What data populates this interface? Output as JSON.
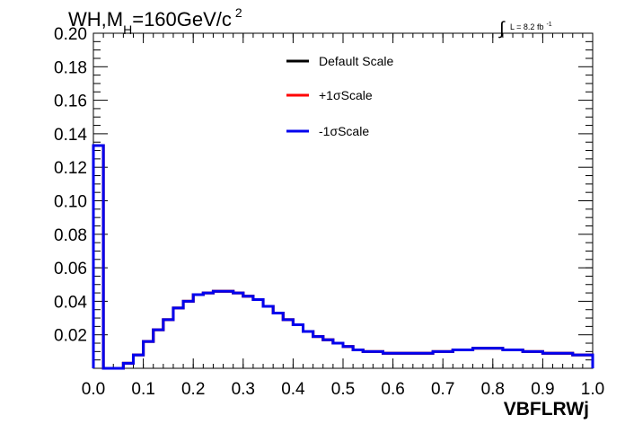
{
  "header": {
    "title_main": "WH,M",
    "title_sub": "H",
    "title_rest": "=160GeV/c",
    "title_sup": "2",
    "lumi_integral": "∫",
    "lumi_text": "L = 8.2 fb",
    "lumi_sup": "-1"
  },
  "chart_data": {
    "type": "line",
    "style": "step histogram",
    "xlabel": "VBFLRWj",
    "ylabel": "",
    "xlim": [
      0.0,
      1.0
    ],
    "ylim": [
      0.0,
      0.2
    ],
    "xticks": [
      "0.0",
      "0.1",
      "0.2",
      "0.3",
      "0.4",
      "0.5",
      "0.6",
      "0.7",
      "0.8",
      "0.9",
      "1.0"
    ],
    "yticks": [
      "0.02",
      "0.04",
      "0.06",
      "0.08",
      "0.10",
      "0.12",
      "0.14",
      "0.16",
      "0.18",
      "0.20"
    ],
    "legend_position": "top-right",
    "bin_edges": [
      0.0,
      0.02,
      0.04,
      0.06,
      0.08,
      0.1,
      0.12,
      0.14,
      0.16,
      0.18,
      0.2,
      0.22,
      0.24,
      0.26,
      0.28,
      0.3,
      0.32,
      0.34,
      0.36,
      0.38,
      0.4,
      0.42,
      0.44,
      0.46,
      0.48,
      0.5,
      0.52,
      0.54,
      0.56,
      0.58,
      0.6,
      0.62,
      0.64,
      0.66,
      0.68,
      0.7,
      0.72,
      0.74,
      0.76,
      0.78,
      0.8,
      0.82,
      0.84,
      0.86,
      0.88,
      0.9,
      0.92,
      0.94,
      0.96,
      0.98,
      1.0
    ],
    "series": [
      {
        "name": "Default Scale",
        "color": "#000000",
        "values": [
          0.133,
          0.0,
          0.0,
          0.003,
          0.008,
          0.016,
          0.023,
          0.029,
          0.036,
          0.04,
          0.044,
          0.045,
          0.046,
          0.046,
          0.045,
          0.043,
          0.041,
          0.037,
          0.033,
          0.029,
          0.026,
          0.022,
          0.019,
          0.017,
          0.015,
          0.013,
          0.011,
          0.01,
          0.01,
          0.009,
          0.009,
          0.009,
          0.009,
          0.009,
          0.01,
          0.01,
          0.011,
          0.011,
          0.012,
          0.012,
          0.012,
          0.011,
          0.011,
          0.01,
          0.01,
          0.009,
          0.009,
          0.009,
          0.008,
          0.008
        ]
      },
      {
        "name": "+1σScale",
        "color": "#ff0000",
        "values": [
          0.133,
          0.0,
          0.0,
          0.003,
          0.008,
          0.016,
          0.023,
          0.029,
          0.036,
          0.04,
          0.044,
          0.045,
          0.046,
          0.046,
          0.045,
          0.043,
          0.041,
          0.037,
          0.033,
          0.029,
          0.026,
          0.022,
          0.019,
          0.017,
          0.015,
          0.013,
          0.011,
          0.01,
          0.01,
          0.009,
          0.009,
          0.009,
          0.009,
          0.009,
          0.01,
          0.01,
          0.011,
          0.011,
          0.012,
          0.012,
          0.012,
          0.011,
          0.011,
          0.01,
          0.01,
          0.009,
          0.009,
          0.009,
          0.008,
          0.008
        ]
      },
      {
        "name": "-1σScale",
        "color": "#0000ee",
        "values": [
          0.133,
          0.0,
          0.0,
          0.003,
          0.008,
          0.016,
          0.023,
          0.029,
          0.036,
          0.04,
          0.044,
          0.045,
          0.046,
          0.046,
          0.045,
          0.043,
          0.041,
          0.037,
          0.033,
          0.029,
          0.026,
          0.022,
          0.019,
          0.017,
          0.015,
          0.013,
          0.011,
          0.01,
          0.01,
          0.009,
          0.009,
          0.009,
          0.009,
          0.009,
          0.01,
          0.01,
          0.011,
          0.011,
          0.012,
          0.012,
          0.012,
          0.011,
          0.011,
          0.01,
          0.01,
          0.009,
          0.009,
          0.009,
          0.008,
          0.008
        ]
      }
    ]
  }
}
